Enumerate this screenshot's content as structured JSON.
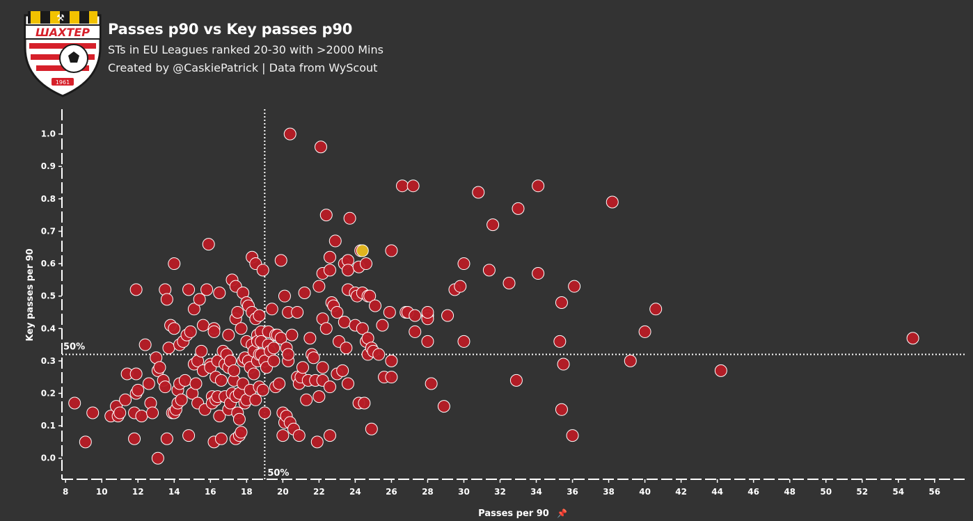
{
  "header": {
    "title": "Passes p90 vs Key passes p90",
    "subtitle": "STs in EU Leagues ranked 20-30 with >2000 Mins",
    "credit": "Created by @CaskiePatrick | Data from WyScout"
  },
  "logo": {
    "text": "ШАХТЕР",
    "year": "1961",
    "colors": {
      "stripe_dark": "#1a1a1a",
      "stripe_gold": "#f2c200",
      "red": "#d6202a",
      "white": "#ffffff"
    }
  },
  "colors": {
    "background": "#333333",
    "point": "#b81c26",
    "point_stroke": "#ffffff",
    "highlight": "#e0b41f",
    "axis": "#ffffff"
  },
  "chart_data": {
    "type": "scatter",
    "title": "Passes p90 vs Key passes p90",
    "xlabel": "Passes per 90",
    "ylabel": "Key passes per 90",
    "xlim": [
      7.8,
      57.7
    ],
    "ylim": [
      -0.065,
      1.07
    ],
    "x_ticks": [
      8,
      10,
      12,
      14,
      16,
      18,
      20,
      22,
      24,
      26,
      28,
      30,
      32,
      34,
      36,
      38,
      40,
      42,
      44,
      46,
      48,
      50,
      52,
      54,
      56
    ],
    "y_ticks": [
      0.0,
      0.1,
      0.2,
      0.3,
      0.4,
      0.5,
      0.6,
      0.7,
      0.8,
      0.9,
      1.0
    ],
    "median_x": 19.0,
    "median_y": 0.32,
    "median_x_label": "50%",
    "median_y_label": "50%",
    "grid": false,
    "highlight": {
      "x": 24.4,
      "y": 0.64
    },
    "points": [
      [
        8.5,
        0.17
      ],
      [
        9.1,
        0.05
      ],
      [
        9.5,
        0.14
      ],
      [
        10.5,
        0.13
      ],
      [
        10.8,
        0.16
      ],
      [
        10.9,
        0.13
      ],
      [
        11.0,
        0.14
      ],
      [
        11.3,
        0.18
      ],
      [
        11.4,
        0.26
      ],
      [
        11.8,
        0.06
      ],
      [
        11.8,
        0.14
      ],
      [
        11.9,
        0.52
      ],
      [
        11.9,
        0.26
      ],
      [
        11.9,
        0.2
      ],
      [
        12.0,
        0.21
      ],
      [
        12.2,
        0.13
      ],
      [
        12.4,
        0.35
      ],
      [
        12.6,
        0.23
      ],
      [
        12.7,
        0.17
      ],
      [
        12.8,
        0.14
      ],
      [
        13.0,
        0.31
      ],
      [
        13.1,
        0.0
      ],
      [
        13.1,
        0.27
      ],
      [
        13.2,
        0.28
      ],
      [
        13.4,
        0.24
      ],
      [
        13.5,
        0.22
      ],
      [
        13.5,
        0.52
      ],
      [
        13.6,
        0.49
      ],
      [
        13.6,
        0.06
      ],
      [
        13.7,
        0.34
      ],
      [
        13.8,
        0.41
      ],
      [
        13.9,
        0.14
      ],
      [
        14.0,
        0.14
      ],
      [
        14.0,
        0.6
      ],
      [
        14.0,
        0.4
      ],
      [
        14.1,
        0.15
      ],
      [
        14.2,
        0.21
      ],
      [
        14.2,
        0.17
      ],
      [
        14.3,
        0.35
      ],
      [
        14.3,
        0.23
      ],
      [
        14.4,
        0.18
      ],
      [
        14.5,
        0.36
      ],
      [
        14.6,
        0.24
      ],
      [
        14.7,
        0.38
      ],
      [
        14.8,
        0.52
      ],
      [
        14.8,
        0.07
      ],
      [
        14.9,
        0.39
      ],
      [
        15.0,
        0.2
      ],
      [
        15.1,
        0.29
      ],
      [
        15.1,
        0.46
      ],
      [
        15.2,
        0.23
      ],
      [
        15.3,
        0.17
      ],
      [
        15.3,
        0.3
      ],
      [
        15.4,
        0.49
      ],
      [
        15.5,
        0.33
      ],
      [
        15.6,
        0.27
      ],
      [
        15.6,
        0.41
      ],
      [
        15.7,
        0.15
      ],
      [
        15.8,
        0.52
      ],
      [
        15.9,
        0.66
      ],
      [
        16.0,
        0.29
      ],
      [
        16.0,
        0.28
      ],
      [
        16.1,
        0.19
      ],
      [
        16.1,
        0.17
      ],
      [
        16.2,
        0.05
      ],
      [
        16.2,
        0.4
      ],
      [
        16.2,
        0.39
      ],
      [
        16.3,
        0.25
      ],
      [
        16.3,
        0.18
      ],
      [
        16.4,
        0.3
      ],
      [
        16.4,
        0.19
      ],
      [
        16.5,
        0.13
      ],
      [
        16.5,
        0.51
      ],
      [
        16.6,
        0.24
      ],
      [
        16.6,
        0.06
      ],
      [
        16.7,
        0.33
      ],
      [
        16.8,
        0.29
      ],
      [
        16.8,
        0.19
      ],
      [
        16.9,
        0.32
      ],
      [
        17.0,
        0.38
      ],
      [
        17.0,
        0.15
      ],
      [
        17.0,
        0.28
      ],
      [
        17.1,
        0.3
      ],
      [
        17.1,
        0.17
      ],
      [
        17.2,
        0.55
      ],
      [
        17.2,
        0.2
      ],
      [
        17.3,
        0.24
      ],
      [
        17.3,
        0.27
      ],
      [
        17.4,
        0.53
      ],
      [
        17.4,
        0.43
      ],
      [
        17.4,
        0.19
      ],
      [
        17.4,
        0.06
      ],
      [
        17.5,
        0.45
      ],
      [
        17.5,
        0.14
      ],
      [
        17.6,
        0.07
      ],
      [
        17.6,
        0.2
      ],
      [
        17.6,
        0.12
      ],
      [
        17.7,
        0.08
      ],
      [
        17.7,
        0.4
      ],
      [
        17.8,
        0.3
      ],
      [
        17.8,
        0.23
      ],
      [
        17.8,
        0.51
      ],
      [
        17.9,
        0.17
      ],
      [
        17.9,
        0.31
      ],
      [
        18.0,
        0.48
      ],
      [
        18.0,
        0.36
      ],
      [
        18.0,
        0.18
      ],
      [
        18.1,
        0.47
      ],
      [
        18.1,
        0.3
      ],
      [
        18.2,
        0.28
      ],
      [
        18.2,
        0.21
      ],
      [
        18.3,
        0.62
      ],
      [
        18.3,
        0.45
      ],
      [
        18.3,
        0.35
      ],
      [
        18.4,
        0.33
      ],
      [
        18.4,
        0.26
      ],
      [
        18.5,
        0.18
      ],
      [
        18.5,
        0.43
      ],
      [
        18.5,
        0.6
      ],
      [
        18.6,
        0.38
      ],
      [
        18.6,
        0.36
      ],
      [
        18.6,
        0.3
      ],
      [
        18.7,
        0.44
      ],
      [
        18.7,
        0.32
      ],
      [
        18.7,
        0.22
      ],
      [
        18.8,
        0.39
      ],
      [
        18.8,
        0.36
      ],
      [
        18.8,
        0.32
      ],
      [
        18.9,
        0.58
      ],
      [
        18.9,
        0.21
      ],
      [
        19.0,
        0.3
      ],
      [
        19.0,
        0.14
      ],
      [
        19.1,
        0.28
      ],
      [
        19.2,
        0.35
      ],
      [
        19.2,
        0.39
      ],
      [
        19.3,
        0.33
      ],
      [
        19.4,
        0.46
      ],
      [
        19.5,
        0.3
      ],
      [
        19.5,
        0.34
      ],
      [
        19.6,
        0.38
      ],
      [
        19.6,
        0.22
      ],
      [
        19.7,
        0.38
      ],
      [
        19.8,
        0.23
      ],
      [
        19.9,
        0.37
      ],
      [
        19.9,
        0.61
      ],
      [
        20.0,
        0.14
      ],
      [
        20.0,
        0.07
      ],
      [
        20.1,
        0.5
      ],
      [
        20.1,
        0.11
      ],
      [
        20.2,
        0.34
      ],
      [
        20.2,
        0.13
      ],
      [
        20.3,
        0.45
      ],
      [
        20.3,
        0.3
      ],
      [
        20.3,
        0.32
      ],
      [
        20.4,
        1.0
      ],
      [
        20.4,
        0.11
      ],
      [
        20.5,
        0.38
      ],
      [
        20.6,
        0.09
      ],
      [
        20.8,
        0.45
      ],
      [
        20.8,
        0.25
      ],
      [
        20.9,
        0.23
      ],
      [
        20.9,
        0.07
      ],
      [
        21.0,
        0.25
      ],
      [
        21.1,
        0.28
      ],
      [
        21.2,
        0.51
      ],
      [
        21.3,
        0.18
      ],
      [
        21.4,
        0.24
      ],
      [
        21.5,
        0.37
      ],
      [
        21.6,
        0.32
      ],
      [
        21.7,
        0.31
      ],
      [
        21.8,
        0.24
      ],
      [
        21.9,
        0.05
      ],
      [
        22.0,
        0.19
      ],
      [
        22.0,
        0.53
      ],
      [
        22.1,
        0.96
      ],
      [
        22.2,
        0.43
      ],
      [
        22.2,
        0.57
      ],
      [
        22.2,
        0.28
      ],
      [
        22.2,
        0.24
      ],
      [
        22.4,
        0.75
      ],
      [
        22.4,
        0.4
      ],
      [
        22.6,
        0.07
      ],
      [
        22.6,
        0.58
      ],
      [
        22.6,
        0.62
      ],
      [
        22.6,
        0.22
      ],
      [
        22.7,
        0.48
      ],
      [
        22.8,
        0.47
      ],
      [
        22.9,
        0.67
      ],
      [
        23.0,
        0.45
      ],
      [
        23.0,
        0.26
      ],
      [
        23.1,
        0.36
      ],
      [
        23.3,
        0.27
      ],
      [
        23.4,
        0.42
      ],
      [
        23.4,
        0.6
      ],
      [
        23.5,
        0.34
      ],
      [
        23.6,
        0.61
      ],
      [
        23.6,
        0.58
      ],
      [
        23.6,
        0.23
      ],
      [
        23.6,
        0.52
      ],
      [
        23.7,
        0.74
      ],
      [
        24.0,
        0.51
      ],
      [
        24.0,
        0.41
      ],
      [
        24.1,
        0.5
      ],
      [
        24.2,
        0.17
      ],
      [
        24.2,
        0.59
      ],
      [
        24.3,
        0.64
      ],
      [
        24.4,
        0.51
      ],
      [
        24.4,
        0.4
      ],
      [
        24.5,
        0.17
      ],
      [
        24.6,
        0.36
      ],
      [
        24.6,
        0.6
      ],
      [
        24.7,
        0.37
      ],
      [
        24.7,
        0.32
      ],
      [
        24.7,
        0.5
      ],
      [
        24.8,
        0.5
      ],
      [
        24.9,
        0.09
      ],
      [
        24.9,
        0.34
      ],
      [
        25.0,
        0.33
      ],
      [
        25.1,
        0.47
      ],
      [
        25.3,
        0.32
      ],
      [
        25.5,
        0.41
      ],
      [
        25.6,
        0.25
      ],
      [
        25.9,
        0.45
      ],
      [
        26.0,
        0.25
      ],
      [
        26.0,
        0.64
      ],
      [
        26.0,
        0.3
      ],
      [
        26.6,
        0.84
      ],
      [
        26.8,
        0.45
      ],
      [
        26.9,
        0.45
      ],
      [
        27.2,
        0.84
      ],
      [
        27.3,
        0.39
      ],
      [
        27.3,
        0.44
      ],
      [
        28.0,
        0.44
      ],
      [
        28.0,
        0.43
      ],
      [
        28.0,
        0.36
      ],
      [
        28.0,
        0.45
      ],
      [
        28.2,
        0.23
      ],
      [
        28.9,
        0.16
      ],
      [
        29.1,
        0.44
      ],
      [
        29.5,
        0.52
      ],
      [
        29.8,
        0.53
      ],
      [
        30.0,
        0.6
      ],
      [
        30.0,
        0.36
      ],
      [
        30.8,
        0.82
      ],
      [
        31.4,
        0.58
      ],
      [
        31.6,
        0.72
      ],
      [
        32.5,
        0.54
      ],
      [
        32.9,
        0.24
      ],
      [
        33.0,
        0.77
      ],
      [
        34.1,
        0.84
      ],
      [
        34.1,
        0.57
      ],
      [
        35.3,
        0.36
      ],
      [
        35.4,
        0.48
      ],
      [
        35.4,
        0.15
      ],
      [
        35.5,
        0.29
      ],
      [
        36.0,
        0.07
      ],
      [
        36.1,
        0.53
      ],
      [
        38.2,
        0.79
      ],
      [
        39.2,
        0.3
      ],
      [
        40.0,
        0.39
      ],
      [
        40.6,
        0.46
      ],
      [
        44.2,
        0.27
      ],
      [
        54.8,
        0.37
      ]
    ]
  }
}
